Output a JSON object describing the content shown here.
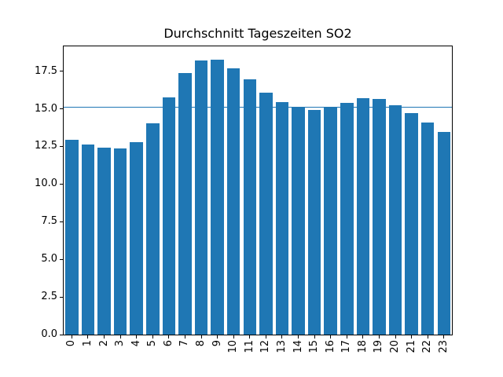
{
  "chart_data": {
    "type": "bar",
    "title": "Durchschnitt Tageszeiten SO2",
    "xlabel": "",
    "ylabel": "",
    "categories": [
      "0",
      "1",
      "2",
      "3",
      "4",
      "5",
      "6",
      "7",
      "8",
      "9",
      "10",
      "11",
      "12",
      "13",
      "14",
      "15",
      "16",
      "17",
      "18",
      "19",
      "20",
      "21",
      "22",
      "23"
    ],
    "values": [
      12.95,
      12.65,
      12.4,
      12.35,
      12.8,
      14.05,
      15.75,
      17.4,
      18.2,
      18.25,
      17.7,
      16.95,
      16.1,
      15.45,
      15.1,
      14.9,
      15.1,
      15.4,
      15.7,
      15.65,
      15.25,
      14.7,
      14.1,
      13.45
    ],
    "mean_line": 15.1,
    "ylim": [
      0,
      19.15
    ],
    "ytick_labels": [
      "0.0",
      "2.5",
      "5.0",
      "7.5",
      "10.0",
      "12.5",
      "15.0",
      "17.5"
    ],
    "xtick_rotation_deg": 90,
    "grid": "off",
    "legend": "none",
    "bar_color": "#1f77b4",
    "line_color": "#1f77b4",
    "spine_color": "#000000",
    "background_color": "#ffffff"
  }
}
